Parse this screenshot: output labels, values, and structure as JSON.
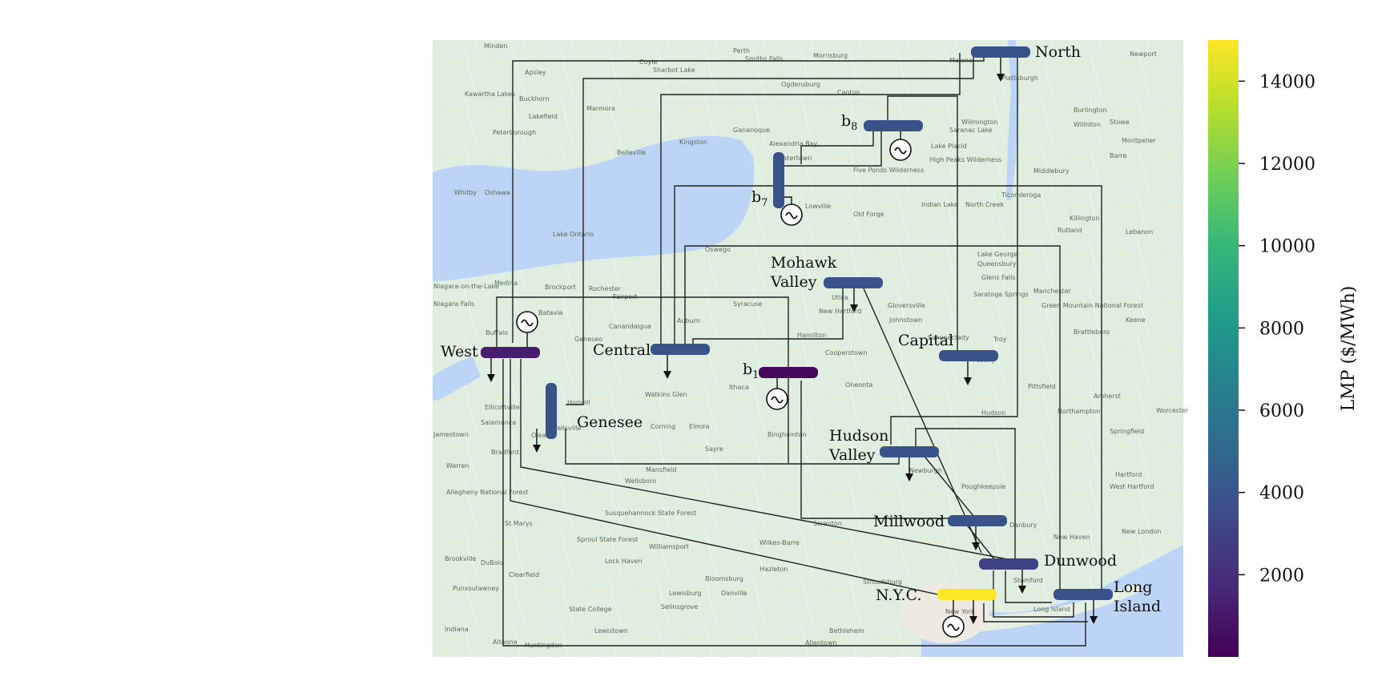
{
  "map": {
    "lake_label": "Lake Ontario",
    "places": [
      "Kingston",
      "Belleville",
      "Oshawa",
      "Whitby",
      "Peterborough",
      "Lakefield",
      "Marmora",
      "Buckhorn",
      "Kawartha Lakes",
      "Minden",
      "Apsley",
      "Coyle",
      "Sharbot Lake",
      "Perth",
      "Smiths Falls",
      "Morrisburg",
      "Malone",
      "Newport",
      "Plattsburgh",
      "Burlington",
      "Stowe",
      "Montpelier",
      "Williston",
      "Barre",
      "Ogdensburg",
      "Gananoque",
      "Alexandria Bay",
      "Watertown",
      "Lowville",
      "Canton",
      "Saranac Lake",
      "Lake Placid",
      "Wilmington",
      "High Peaks Wilderness",
      "Five Ponds Wilderness",
      "Old Forge",
      "Indian Lake",
      "North Creek",
      "Ticonderoga",
      "Middlebury",
      "Killington",
      "Rutland",
      "Lebanon",
      "Oswego",
      "Syracuse",
      "Rochester",
      "Fairport",
      "Canandaigua",
      "Auburn",
      "Geneseo",
      "Batavia",
      "Brockport",
      "Medina",
      "Buffalo",
      "Niagara-on-the-Lake",
      "Niagara Falls",
      "Utica",
      "New Hartford",
      "Gloversville",
      "Johnstown",
      "Saratoga Springs",
      "Glens Falls",
      "Queensbury",
      "Lake George",
      "Schenectady",
      "Albany",
      "Troy",
      "Pittsfield",
      "Manchester",
      "Green Mountain National Forest",
      "Keene",
      "Brattleboro",
      "Amherst",
      "Northampton",
      "Springfield",
      "Hartford",
      "West Hartford",
      "Worcester",
      "Hamilton",
      "Cooperstown",
      "Oneonta",
      "Binghamton",
      "Ithaca",
      "Elmira",
      "Corning",
      "Hornell",
      "Watkins Glen",
      "Ellicottville",
      "Salamanca",
      "Olean",
      "Wellsville",
      "Bradford",
      "Jamestown",
      "Warren",
      "Allegheny National Forest",
      "Mansfield",
      "Wellsboro",
      "Sayre",
      "Scranton",
      "Wilkes-Barre",
      "Hazleton",
      "Stroudsburg",
      "Lock Haven",
      "Williamsport",
      "Sproul State Forest",
      "Susquehannock State Forest",
      "St Marys",
      "Clearfield",
      "DuBois",
      "Brookville",
      "Punxsutawney",
      "Indiana",
      "Altoona",
      "Huntingdon",
      "State College",
      "Lewistown",
      "Selinsgrove",
      "Bloomsburg",
      "Danville",
      "Lewisburg",
      "Bethlehem",
      "Allentown",
      "Poughkeepsie",
      "Hudson",
      "Danbury",
      "Stamford",
      "New Haven",
      "New London",
      "New York",
      "Long Island",
      "Newburgh"
    ]
  },
  "zones": [
    {
      "id": "north",
      "name": "North",
      "lmp": 3800,
      "generator": false,
      "load": true
    },
    {
      "id": "b8",
      "name": "b",
      "subscript": "8",
      "lmp": 3800,
      "generator": true,
      "load": false
    },
    {
      "id": "b7",
      "name": "b",
      "subscript": "7",
      "lmp": 3800,
      "generator": true,
      "load": false
    },
    {
      "id": "mohawk_valley",
      "name": "Mohawk",
      "name2": "Valley",
      "lmp": 3800,
      "generator": false,
      "load": true
    },
    {
      "id": "west",
      "name": "West",
      "lmp": 1200,
      "generator": true,
      "load": true
    },
    {
      "id": "central",
      "name": "Central",
      "lmp": 3800,
      "generator": false,
      "load": true
    },
    {
      "id": "b1",
      "name": "b",
      "subscript": "1",
      "lmp": 300,
      "generator": true,
      "load": false
    },
    {
      "id": "capital",
      "name": "Capital",
      "lmp": 3800,
      "generator": false,
      "load": true
    },
    {
      "id": "genesee",
      "name": "Genesee",
      "lmp": 3800,
      "generator": false,
      "load": true
    },
    {
      "id": "hudson_valley",
      "name": "Hudson",
      "name2": "Valley",
      "lmp": 3800,
      "generator": false,
      "load": true
    },
    {
      "id": "millwood",
      "name": "Millwood",
      "lmp": 3800,
      "generator": false,
      "load": true
    },
    {
      "id": "dunwood",
      "name": "Dunwood",
      "lmp": 3000,
      "generator": false,
      "load": true
    },
    {
      "id": "nyc",
      "name": "N.Y.C.",
      "lmp": 15000,
      "generator": true,
      "load": true
    },
    {
      "id": "long_island",
      "name": "Long",
      "name2": "Island",
      "lmp": 3800,
      "generator": false,
      "load": true
    }
  ],
  "colorbar": {
    "label": "LMP ($/MWh)",
    "min": 0,
    "max": 15000,
    "ticks": [
      2000,
      4000,
      6000,
      8000,
      10000,
      12000,
      14000
    ],
    "tick_labels": [
      "2000",
      "4000",
      "6000",
      "8000",
      "10000",
      "12000",
      "14000"
    ],
    "colormap": [
      "#440154",
      "#482878",
      "#3e4989",
      "#31688e",
      "#26828e",
      "#1f9e89",
      "#35b779",
      "#6ece58",
      "#b5de2b",
      "#fde725"
    ]
  },
  "colors": {
    "land": "#dfeee0",
    "water": "#bcd4f5",
    "line": "#222222"
  }
}
